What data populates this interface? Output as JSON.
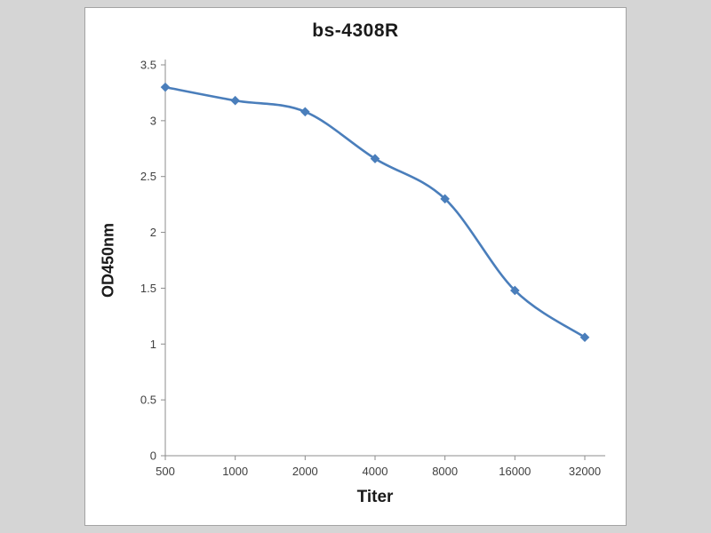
{
  "chart_data": {
    "type": "line",
    "title": "bs-4308R",
    "xlabel": "Titer",
    "ylabel": "OD450nm",
    "categories": [
      "500",
      "1000",
      "2000",
      "4000",
      "8000",
      "16000",
      "32000"
    ],
    "series": [
      {
        "name": "OD450nm",
        "values": [
          3.3,
          3.18,
          3.08,
          2.66,
          2.3,
          1.48,
          1.06
        ]
      }
    ],
    "ylim": [
      0,
      3.5
    ],
    "ytick_labels": [
      "0",
      "0.5",
      "1",
      "1.5",
      "2",
      "2.5",
      "3",
      "3.5"
    ],
    "grid": false,
    "legend": "none",
    "line_color": "#4a7ebb",
    "marker": "diamond",
    "axis_color": "#8c8c8c"
  },
  "frame": {
    "background_color": "#d5d5d5",
    "panel_color": "#ffffff"
  }
}
